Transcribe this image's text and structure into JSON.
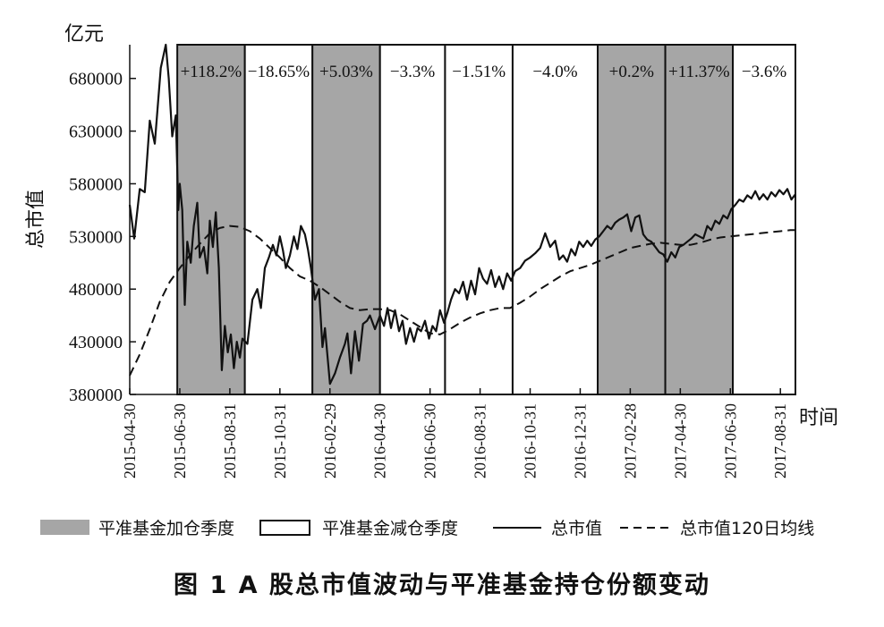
{
  "figure": {
    "caption": "图 1   A 股总市值波动与平准基金持仓份额变动"
  },
  "chart_data": {
    "type": "line",
    "title": "",
    "ylabel": "总市值",
    "yunit": "亿元",
    "xlabel": "时间",
    "ylim": [
      380000,
      712000
    ],
    "yticks": [
      380000,
      430000,
      480000,
      530000,
      580000,
      630000,
      680000
    ],
    "x_dates": [
      "2015-04-30",
      "2015-06-30",
      "2015-08-31",
      "2015-10-31",
      "2016-02-29",
      "2016-04-30",
      "2016-06-30",
      "2016-08-31",
      "2016-10-31",
      "2016-12-31",
      "2017-02-28",
      "2017-04-30",
      "2017-06-30",
      "2017-08-31"
    ],
    "x_date_index": [
      0,
      1,
      2,
      3,
      4,
      5,
      6,
      7,
      8,
      9,
      10,
      11,
      12,
      13
    ],
    "xlim_index": [
      0,
      13.3
    ],
    "quarters": [
      {
        "start": 0.95,
        "end": 2.3,
        "type": "increase",
        "label": "+118.2%"
      },
      {
        "start": 2.3,
        "end": 3.65,
        "type": "decrease",
        "label": "−18.65%"
      },
      {
        "start": 3.65,
        "end": 5.0,
        "type": "increase",
        "label": "+5.03%"
      },
      {
        "start": 5.0,
        "end": 6.3,
        "type": "decrease",
        "label": "−3.3%"
      },
      {
        "start": 6.3,
        "end": 7.65,
        "type": "decrease",
        "label": "−1.51%"
      },
      {
        "start": 7.65,
        "end": 9.35,
        "type": "decrease",
        "label": "−4.0%"
      },
      {
        "start": 9.35,
        "end": 10.7,
        "type": "increase",
        "label": "+0.2%"
      },
      {
        "start": 10.7,
        "end": 12.05,
        "type": "increase",
        "label": "+11.37%"
      },
      {
        "start": 12.05,
        "end": 13.3,
        "type": "decrease",
        "label": "−3.6%"
      }
    ],
    "series": [
      {
        "name": "总市值",
        "style": "solid",
        "color": "#111111",
        "points": [
          [
            0.0,
            560000
          ],
          [
            0.09,
            528000
          ],
          [
            0.2,
            575000
          ],
          [
            0.3,
            572000
          ],
          [
            0.4,
            640000
          ],
          [
            0.5,
            618000
          ],
          [
            0.62,
            690000
          ],
          [
            0.72,
            712000
          ],
          [
            0.78,
            680000
          ],
          [
            0.85,
            625000
          ],
          [
            0.92,
            645000
          ],
          [
            0.97,
            555000
          ],
          [
            1.0,
            580000
          ],
          [
            1.05,
            555000
          ],
          [
            1.1,
            465000
          ],
          [
            1.15,
            525000
          ],
          [
            1.22,
            505000
          ],
          [
            1.28,
            540000
          ],
          [
            1.35,
            562000
          ],
          [
            1.4,
            510000
          ],
          [
            1.48,
            520000
          ],
          [
            1.55,
            495000
          ],
          [
            1.6,
            545000
          ],
          [
            1.66,
            520000
          ],
          [
            1.72,
            553000
          ],
          [
            1.78,
            500000
          ],
          [
            1.84,
            403000
          ],
          [
            1.9,
            445000
          ],
          [
            1.96,
            420000
          ],
          [
            2.02,
            437000
          ],
          [
            2.08,
            405000
          ],
          [
            2.14,
            430000
          ],
          [
            2.2,
            415000
          ],
          [
            2.25,
            433000
          ],
          [
            2.35,
            428000
          ],
          [
            2.45,
            470000
          ],
          [
            2.55,
            480000
          ],
          [
            2.62,
            462000
          ],
          [
            2.7,
            500000
          ],
          [
            2.78,
            510000
          ],
          [
            2.86,
            522000
          ],
          [
            2.93,
            512000
          ],
          [
            3.0,
            530000
          ],
          [
            3.06,
            517000
          ],
          [
            3.12,
            500000
          ],
          [
            3.2,
            512000
          ],
          [
            3.28,
            530000
          ],
          [
            3.35,
            518000
          ],
          [
            3.42,
            540000
          ],
          [
            3.5,
            532000
          ],
          [
            3.56,
            518000
          ],
          [
            3.62,
            500000
          ],
          [
            3.7,
            470000
          ],
          [
            3.78,
            480000
          ],
          [
            3.85,
            425000
          ],
          [
            3.9,
            443000
          ],
          [
            4.0,
            390000
          ],
          [
            4.1,
            400000
          ],
          [
            4.2,
            415000
          ],
          [
            4.3,
            428000
          ],
          [
            4.35,
            438000
          ],
          [
            4.42,
            400000
          ],
          [
            4.5,
            440000
          ],
          [
            4.58,
            412000
          ],
          [
            4.66,
            447000
          ],
          [
            4.74,
            450000
          ],
          [
            4.8,
            455000
          ],
          [
            4.9,
            442000
          ],
          [
            5.0,
            455000
          ],
          [
            5.08,
            445000
          ],
          [
            5.15,
            462000
          ],
          [
            5.22,
            443000
          ],
          [
            5.3,
            460000
          ],
          [
            5.38,
            440000
          ],
          [
            5.45,
            450000
          ],
          [
            5.52,
            428000
          ],
          [
            5.6,
            443000
          ],
          [
            5.68,
            430000
          ],
          [
            5.75,
            443000
          ],
          [
            5.82,
            440000
          ],
          [
            5.9,
            450000
          ],
          [
            5.98,
            433000
          ],
          [
            6.05,
            445000
          ],
          [
            6.12,
            440000
          ],
          [
            6.2,
            460000
          ],
          [
            6.28,
            448000
          ],
          [
            6.35,
            458000
          ],
          [
            6.42,
            470000
          ],
          [
            6.5,
            480000
          ],
          [
            6.58,
            476000
          ],
          [
            6.66,
            487000
          ],
          [
            6.74,
            470000
          ],
          [
            6.82,
            488000
          ],
          [
            6.9,
            475000
          ],
          [
            6.98,
            500000
          ],
          [
            7.06,
            490000
          ],
          [
            7.14,
            485000
          ],
          [
            7.22,
            498000
          ],
          [
            7.3,
            482000
          ],
          [
            7.38,
            492000
          ],
          [
            7.46,
            480000
          ],
          [
            7.54,
            495000
          ],
          [
            7.62,
            488000
          ],
          [
            7.7,
            497000
          ],
          [
            7.8,
            500000
          ],
          [
            7.9,
            507000
          ],
          [
            8.0,
            510000
          ],
          [
            8.1,
            514000
          ],
          [
            8.2,
            519000
          ],
          [
            8.3,
            533000
          ],
          [
            8.4,
            520000
          ],
          [
            8.5,
            526000
          ],
          [
            8.58,
            508000
          ],
          [
            8.66,
            512000
          ],
          [
            8.74,
            506000
          ],
          [
            8.82,
            518000
          ],
          [
            8.9,
            512000
          ],
          [
            8.98,
            525000
          ],
          [
            9.06,
            520000
          ],
          [
            9.14,
            526000
          ],
          [
            9.22,
            521000
          ],
          [
            9.3,
            527000
          ],
          [
            9.38,
            530000
          ],
          [
            9.46,
            535000
          ],
          [
            9.54,
            540000
          ],
          [
            9.62,
            537000
          ],
          [
            9.7,
            543000
          ],
          [
            9.78,
            546000
          ],
          [
            9.86,
            548000
          ],
          [
            9.94,
            551000
          ],
          [
            10.02,
            535000
          ],
          [
            10.1,
            548000
          ],
          [
            10.18,
            550000
          ],
          [
            10.26,
            532000
          ],
          [
            10.34,
            527000
          ],
          [
            10.42,
            525000
          ],
          [
            10.5,
            520000
          ],
          [
            10.58,
            515000
          ],
          [
            10.66,
            513000
          ],
          [
            10.74,
            506000
          ],
          [
            10.82,
            515000
          ],
          [
            10.9,
            510000
          ],
          [
            10.98,
            520000
          ],
          [
            11.06,
            522000
          ],
          [
            11.14,
            525000
          ],
          [
            11.22,
            528000
          ],
          [
            11.3,
            532000
          ],
          [
            11.38,
            530000
          ],
          [
            11.46,
            528000
          ],
          [
            11.54,
            540000
          ],
          [
            11.62,
            536000
          ],
          [
            11.7,
            545000
          ],
          [
            11.78,
            542000
          ],
          [
            11.86,
            550000
          ],
          [
            11.94,
            547000
          ],
          [
            12.02,
            556000
          ],
          [
            12.1,
            560000
          ],
          [
            12.18,
            565000
          ],
          [
            12.26,
            563000
          ],
          [
            12.34,
            569000
          ],
          [
            12.42,
            566000
          ],
          [
            12.5,
            573000
          ],
          [
            12.58,
            565000
          ],
          [
            12.66,
            570000
          ],
          [
            12.74,
            565000
          ],
          [
            12.82,
            572000
          ],
          [
            12.9,
            568000
          ],
          [
            12.98,
            574000
          ],
          [
            13.06,
            570000
          ],
          [
            13.14,
            575000
          ],
          [
            13.22,
            565000
          ],
          [
            13.3,
            570000
          ]
        ]
      },
      {
        "name": "总市值120日均线",
        "style": "dashed",
        "color": "#111111",
        "points": [
          [
            0.0,
            398000
          ],
          [
            0.2,
            418000
          ],
          [
            0.4,
            442000
          ],
          [
            0.6,
            468000
          ],
          [
            0.8,
            487000
          ],
          [
            1.0,
            500000
          ],
          [
            1.2,
            512000
          ],
          [
            1.4,
            523000
          ],
          [
            1.6,
            533000
          ],
          [
            1.8,
            538000
          ],
          [
            2.0,
            540000
          ],
          [
            2.2,
            539000
          ],
          [
            2.4,
            535000
          ],
          [
            2.6,
            528000
          ],
          [
            2.8,
            519000
          ],
          [
            3.0,
            510000
          ],
          [
            3.2,
            500000
          ],
          [
            3.4,
            492000
          ],
          [
            3.6,
            488000
          ],
          [
            3.8,
            482000
          ],
          [
            4.0,
            475000
          ],
          [
            4.2,
            468000
          ],
          [
            4.4,
            462000
          ],
          [
            4.6,
            460000
          ],
          [
            4.8,
            461000
          ],
          [
            5.0,
            461000
          ],
          [
            5.2,
            460000
          ],
          [
            5.4,
            456000
          ],
          [
            5.6,
            450000
          ],
          [
            5.8,
            444000
          ],
          [
            6.0,
            438000
          ],
          [
            6.2,
            437000
          ],
          [
            6.4,
            442000
          ],
          [
            6.6,
            448000
          ],
          [
            6.8,
            453000
          ],
          [
            7.0,
            457000
          ],
          [
            7.2,
            460000
          ],
          [
            7.4,
            462000
          ],
          [
            7.6,
            462000
          ],
          [
            7.8,
            467000
          ],
          [
            8.0,
            473000
          ],
          [
            8.2,
            480000
          ],
          [
            8.4,
            486000
          ],
          [
            8.6,
            492000
          ],
          [
            8.8,
            497000
          ],
          [
            9.0,
            500000
          ],
          [
            9.2,
            503000
          ],
          [
            9.4,
            507000
          ],
          [
            9.6,
            511000
          ],
          [
            9.8,
            515000
          ],
          [
            10.0,
            519000
          ],
          [
            10.2,
            521000
          ],
          [
            10.4,
            523000
          ],
          [
            10.6,
            524000
          ],
          [
            10.8,
            523000
          ],
          [
            11.0,
            522000
          ],
          [
            11.2,
            522000
          ],
          [
            11.4,
            524000
          ],
          [
            11.6,
            527000
          ],
          [
            11.8,
            529000
          ],
          [
            12.0,
            530000
          ],
          [
            12.2,
            531000
          ],
          [
            12.4,
            532000
          ],
          [
            12.6,
            533000
          ],
          [
            12.8,
            534000
          ],
          [
            13.0,
            535000
          ],
          [
            13.2,
            536000
          ],
          [
            13.3,
            536000
          ]
        ]
      }
    ],
    "legend": {
      "position": "bottom",
      "items": [
        {
          "label": "平准基金加仓季度",
          "kind": "filled-box",
          "color": "#a6a6a6"
        },
        {
          "label": "平准基金减仓季度",
          "kind": "empty-box"
        },
        {
          "label": "总市值",
          "kind": "solid-line"
        },
        {
          "label": "总市值120日均线",
          "kind": "dashed-line"
        }
      ]
    },
    "colors": {
      "increase_fill": "#a6a6a6",
      "decrease_fill": "#ffffff",
      "line": "#111111",
      "axis": "#111111"
    },
    "grid": false
  }
}
